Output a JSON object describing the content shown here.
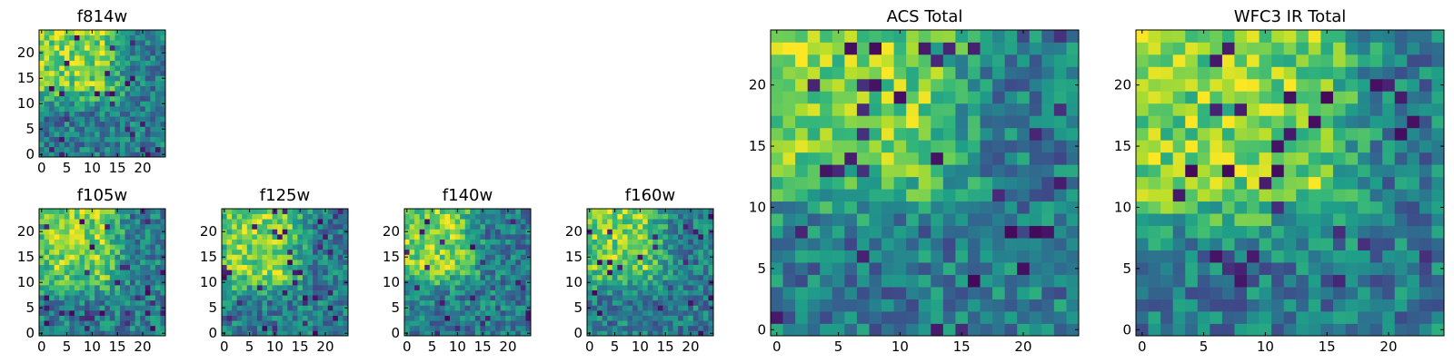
{
  "figure": {
    "background": "#ffffff",
    "colormap": "viridis",
    "colormap_stops": [
      "#440154",
      "#3b528b",
      "#21918c",
      "#5ec962",
      "#fde725"
    ]
  },
  "chart_data": [
    {
      "type": "heatmap",
      "title": "f814w",
      "grid_size": [
        25,
        25
      ],
      "origin": "lower",
      "bright_region": {
        "x_range": [
          0,
          12
        ],
        "y_range": [
          14,
          24
        ]
      },
      "xticks": [
        0,
        5,
        10,
        15,
        20
      ],
      "yticks": [
        0,
        5,
        10,
        15,
        20
      ],
      "xlim": [
        -0.5,
        24.5
      ],
      "ylim": [
        -0.5,
        24.5
      ],
      "colormap": "viridis"
    },
    {
      "type": "heatmap",
      "title": "f105w",
      "grid_size": [
        25,
        25
      ],
      "origin": "lower",
      "bright_region": {
        "x_range": [
          2,
          12
        ],
        "y_range": [
          12,
          24
        ]
      },
      "xticks": [
        0,
        5,
        10,
        15,
        20
      ],
      "yticks": [
        0,
        5,
        10,
        15,
        20
      ],
      "xlim": [
        -0.5,
        24.5
      ],
      "ylim": [
        -0.5,
        24.5
      ],
      "colormap": "viridis"
    },
    {
      "type": "heatmap",
      "title": "f125w",
      "grid_size": [
        25,
        25
      ],
      "origin": "lower",
      "bright_region": {
        "x_range": [
          2,
          12
        ],
        "y_range": [
          12,
          24
        ]
      },
      "xticks": [
        0,
        5,
        10,
        15,
        20
      ],
      "yticks": [
        0,
        5,
        10,
        15,
        20
      ],
      "xlim": [
        -0.5,
        24.5
      ],
      "ylim": [
        -0.5,
        24.5
      ],
      "colormap": "viridis"
    },
    {
      "type": "heatmap",
      "title": "f140w",
      "grid_size": [
        25,
        25
      ],
      "origin": "lower",
      "bright_region": {
        "x_range": [
          0,
          10
        ],
        "y_range": [
          13,
          24
        ]
      },
      "xticks": [
        0,
        5,
        10,
        15,
        20
      ],
      "yticks": [
        0,
        5,
        10,
        15,
        20
      ],
      "xlim": [
        -0.5,
        24.5
      ],
      "ylim": [
        -0.5,
        24.5
      ],
      "colormap": "viridis"
    },
    {
      "type": "heatmap",
      "title": "f160w",
      "grid_size": [
        25,
        25
      ],
      "origin": "lower",
      "bright_region": {
        "x_range": [
          1,
          11
        ],
        "y_range": [
          13,
          24
        ]
      },
      "xticks": [
        0,
        5,
        10,
        15,
        20
      ],
      "yticks": [
        0,
        5,
        10,
        15,
        20
      ],
      "xlim": [
        -0.5,
        24.5
      ],
      "ylim": [
        -0.5,
        24.5
      ],
      "colormap": "viridis"
    },
    {
      "type": "heatmap",
      "title": "ACS Total",
      "grid_size": [
        25,
        25
      ],
      "origin": "lower",
      "bright_region": {
        "x_range": [
          0,
          12
        ],
        "y_range": [
          14,
          24
        ]
      },
      "xticks": [
        0,
        5,
        10,
        15,
        20
      ],
      "yticks": [
        0,
        5,
        10,
        15,
        20
      ],
      "xlim": [
        -0.5,
        24.5
      ],
      "ylim": [
        -0.5,
        24.5
      ],
      "colormap": "viridis"
    },
    {
      "type": "heatmap",
      "title": "WFC3 IR Total",
      "grid_size": [
        25,
        25
      ],
      "origin": "lower",
      "bright_region": {
        "x_range": [
          0,
          14
        ],
        "y_range": [
          12,
          24
        ]
      },
      "xticks": [
        0,
        5,
        10,
        15,
        20
      ],
      "yticks": [
        0,
        5,
        10,
        15,
        20
      ],
      "xlim": [
        -0.5,
        24.5
      ],
      "ylim": [
        -0.5,
        24.5
      ],
      "colormap": "viridis"
    }
  ]
}
